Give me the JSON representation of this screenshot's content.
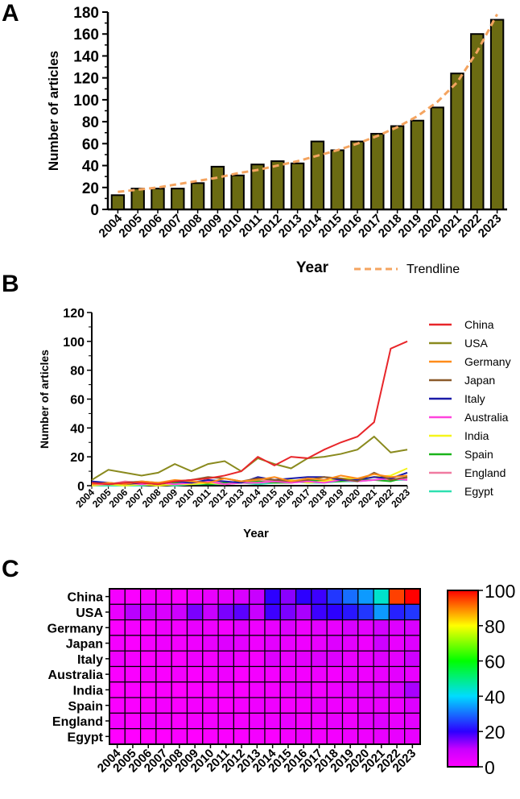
{
  "chart_data": [
    {
      "panel": "A",
      "type": "bar",
      "xlabel": "Year",
      "ylabel": "Number of articles",
      "ylim": [
        0,
        180
      ],
      "yticks": [
        "0",
        "20",
        "40",
        "60",
        "80",
        "100",
        "120",
        "140",
        "160",
        "180"
      ],
      "categories": [
        "2004",
        "2005",
        "2006",
        "2007",
        "2008",
        "2009",
        "2010",
        "2011",
        "2012",
        "2013",
        "2014",
        "2015",
        "2016",
        "2017",
        "2018",
        "2019",
        "2020",
        "2021",
        "2022",
        "2023"
      ],
      "values": [
        13,
        19,
        19,
        19,
        24,
        39,
        31,
        41,
        44,
        42,
        62,
        54,
        62,
        69,
        76,
        81,
        93,
        124,
        160,
        173
      ],
      "trendline": {
        "label": "Trendline",
        "values": [
          16,
          18,
          20,
          23,
          26,
          29,
          33,
          36,
          40,
          44,
          49,
          54,
          60,
          67,
          75,
          85,
          98,
          116,
          144,
          178
        ]
      },
      "colors": {
        "bar": "#6b6b12",
        "bar_border": "#000000",
        "trend": "#f4a460"
      }
    },
    {
      "panel": "B",
      "type": "line",
      "xlabel": "Year",
      "ylabel": "Number of articles",
      "ylim": [
        0,
        120
      ],
      "yticks": [
        "0",
        "20",
        "40",
        "60",
        "80",
        "100",
        "120"
      ],
      "categories": [
        "2004",
        "2005",
        "2006",
        "2007",
        "2008",
        "2009",
        "2010",
        "2011",
        "2012",
        "2013",
        "2014",
        "2015",
        "2016",
        "2017",
        "2018",
        "2019",
        "2020",
        "2021",
        "2022",
        "2023"
      ],
      "legend_position": "right",
      "series": [
        {
          "name": "China",
          "color": "#e8262a",
          "values": [
            2,
            1,
            2,
            2,
            1,
            3,
            4,
            5,
            7,
            10,
            20,
            14,
            20,
            19,
            25,
            30,
            34,
            44,
            95,
            100
          ]
        },
        {
          "name": "USA",
          "color": "#8a8a1e",
          "values": [
            4,
            11,
            9,
            7,
            9,
            15,
            10,
            15,
            17,
            10,
            19,
            15,
            12,
            19,
            20,
            22,
            25,
            34,
            23,
            25
          ]
        },
        {
          "name": "Germany",
          "color": "#ff8c1a",
          "values": [
            1,
            2,
            1,
            3,
            2,
            4,
            3,
            2,
            5,
            3,
            4,
            6,
            3,
            5,
            4,
            7,
            5,
            8,
            6,
            7
          ]
        },
        {
          "name": "Japan",
          "color": "#8b5a2b",
          "values": [
            2,
            1,
            2,
            3,
            2,
            3,
            4,
            6,
            5,
            3,
            5,
            4,
            3,
            4,
            6,
            5,
            3,
            9,
            4,
            6
          ]
        },
        {
          "name": "Italy",
          "color": "#1a1aa8",
          "values": [
            3,
            2,
            1,
            2,
            1,
            3,
            2,
            4,
            3,
            2,
            6,
            4,
            5,
            6,
            6,
            4,
            4,
            6,
            5,
            9
          ]
        },
        {
          "name": "Australia",
          "color": "#ff44dd",
          "values": [
            1,
            1,
            2,
            1,
            2,
            1,
            2,
            3,
            1,
            2,
            2,
            3,
            2,
            3,
            2,
            4,
            3,
            4,
            5,
            4
          ]
        },
        {
          "name": "India",
          "color": "#f5f51a",
          "values": [
            0,
            1,
            0,
            1,
            0,
            1,
            1,
            2,
            1,
            2,
            2,
            3,
            4,
            2,
            3,
            5,
            5,
            6,
            7,
            12
          ]
        },
        {
          "name": "Spain",
          "color": "#1ab41a",
          "values": [
            1,
            1,
            1,
            2,
            1,
            2,
            2,
            1,
            2,
            3,
            3,
            2,
            2,
            4,
            3,
            3,
            4,
            4,
            3,
            6
          ]
        },
        {
          "name": "England",
          "color": "#f07aa0",
          "values": [
            2,
            1,
            3,
            2,
            1,
            2,
            2,
            3,
            2,
            3,
            3,
            4,
            2,
            3,
            4,
            3,
            5,
            6,
            4,
            5
          ]
        },
        {
          "name": "Egypt",
          "color": "#2ee0b0",
          "values": [
            0,
            0,
            0,
            0,
            1,
            0,
            1,
            1,
            1,
            2,
            1,
            2,
            3,
            2,
            2,
            3,
            3,
            4,
            4,
            4
          ]
        }
      ]
    },
    {
      "panel": "C",
      "type": "heatmap",
      "rows": [
        "China",
        "USA",
        "Germany",
        "Japan",
        "Italy",
        "Australia",
        "India",
        "Spain",
        "England",
        "Egypt"
      ],
      "columns": [
        "2004",
        "2005",
        "2006",
        "2007",
        "2008",
        "2009",
        "2010",
        "2011",
        "2012",
        "2013",
        "2014",
        "2015",
        "2016",
        "2017",
        "2018",
        "2019",
        "2020",
        "2021",
        "2022",
        "2023"
      ],
      "values": [
        [
          2,
          1,
          2,
          2,
          1,
          3,
          4,
          5,
          7,
          10,
          20,
          14,
          20,
          19,
          25,
          30,
          34,
          44,
          95,
          100
        ],
        [
          4,
          11,
          9,
          7,
          9,
          15,
          10,
          15,
          17,
          10,
          19,
          15,
          12,
          19,
          20,
          22,
          25,
          34,
          23,
          25
        ],
        [
          1,
          2,
          1,
          3,
          2,
          4,
          3,
          2,
          5,
          3,
          4,
          6,
          3,
          5,
          4,
          7,
          5,
          8,
          6,
          7
        ],
        [
          2,
          1,
          2,
          3,
          2,
          3,
          4,
          6,
          5,
          3,
          5,
          4,
          3,
          4,
          6,
          5,
          3,
          9,
          4,
          6
        ],
        [
          3,
          2,
          1,
          2,
          1,
          3,
          2,
          4,
          3,
          2,
          6,
          4,
          5,
          6,
          6,
          4,
          4,
          6,
          5,
          9
        ],
        [
          1,
          1,
          2,
          1,
          2,
          1,
          2,
          3,
          1,
          2,
          2,
          3,
          2,
          3,
          2,
          4,
          3,
          4,
          5,
          4
        ],
        [
          0,
          1,
          0,
          1,
          0,
          1,
          1,
          2,
          1,
          2,
          2,
          3,
          4,
          2,
          3,
          5,
          5,
          6,
          7,
          12
        ],
        [
          1,
          1,
          1,
          2,
          1,
          2,
          2,
          1,
          2,
          3,
          3,
          2,
          2,
          4,
          3,
          3,
          4,
          4,
          3,
          6
        ],
        [
          2,
          1,
          3,
          2,
          1,
          2,
          2,
          3,
          2,
          3,
          3,
          4,
          2,
          3,
          4,
          3,
          5,
          6,
          4,
          5
        ],
        [
          0,
          0,
          0,
          0,
          1,
          0,
          1,
          1,
          1,
          2,
          1,
          2,
          3,
          2,
          2,
          3,
          3,
          4,
          4,
          4
        ]
      ],
      "colorbar": {
        "min": 0,
        "max": 100,
        "ticks": [
          "0",
          "20",
          "40",
          "60",
          "80",
          "100"
        ]
      }
    }
  ]
}
